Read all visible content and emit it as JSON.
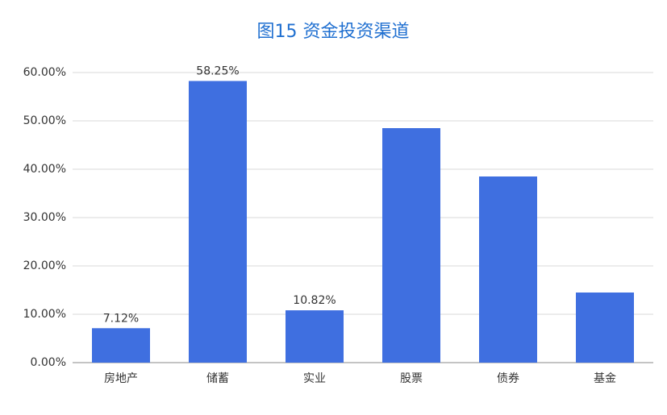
{
  "chart_data": {
    "type": "bar",
    "title": "图15 资金投资渠道",
    "categories": [
      "房地产",
      "储蓄",
      "实业",
      "股票",
      "债券",
      "基金"
    ],
    "values": [
      7.12,
      58.25,
      10.82,
      48.5,
      38.5,
      14.5
    ],
    "value_labels": [
      "7.12%",
      "58.25%",
      "10.82%",
      null,
      null,
      null
    ],
    "color": "#3f6fe0",
    "ylim": [
      0,
      60
    ],
    "yticks": [
      {
        "value": 0,
        "label": "0.00%"
      },
      {
        "value": 10,
        "label": "10.00%"
      },
      {
        "value": 20,
        "label": "20.00%"
      },
      {
        "value": 30,
        "label": "30.00%"
      },
      {
        "value": 40,
        "label": "40.00%"
      },
      {
        "value": 50,
        "label": "50.00%"
      },
      {
        "value": 60,
        "label": "60.00%"
      }
    ],
    "grid": true
  }
}
